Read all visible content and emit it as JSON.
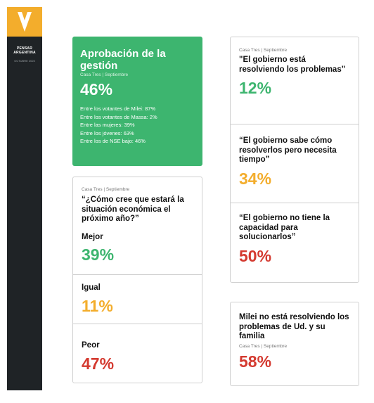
{
  "sidebar": {
    "title_line1": "PENSAR",
    "title_line2": "ARGENTINA",
    "subtitle": "OCTUBRE 2023"
  },
  "approval": {
    "title": "Aprobación de la gestión",
    "source": "Casa Tres | Septiembre",
    "value": "46%",
    "details": [
      "Entre los votantes de Milei: 87%",
      "Entre los votantes de Massa: 2%",
      "Entre las mujeres: 39%",
      "Entre los jóvenes: 63%",
      "Entre los de NSE bajo: 46%"
    ]
  },
  "economy": {
    "source": "Casa Tres | Septiembre",
    "question": "“¿Cómo cree que estará la situación económica el próximo año?”",
    "options": [
      {
        "label": "Mejor",
        "value": "39%"
      },
      {
        "label": "Igual",
        "value": "11%"
      },
      {
        "label": "Peor",
        "value": "47%"
      }
    ]
  },
  "government": {
    "source": "Casa Tres | Septiembre",
    "statements": [
      {
        "text": "\"El gobierno está resolviendo los problemas\"",
        "value": "12%"
      },
      {
        "text": "“El gobierno sabe cómo resolverlos pero necesita tiempo”",
        "value": "34%"
      },
      {
        "text": "“El gobierno no tiene la capacidad para solucionarlos”",
        "value": "50%"
      }
    ]
  },
  "milei": {
    "text": "Milei no está resolviendo los problemas de Ud. y su familia",
    "source": "Casa Tres | Septiembre",
    "value": "58%"
  },
  "colors": {
    "green": "#3db56f",
    "yellow": "#f3ad2c",
    "red": "#d43a30",
    "sidebar": "#1f2326"
  }
}
